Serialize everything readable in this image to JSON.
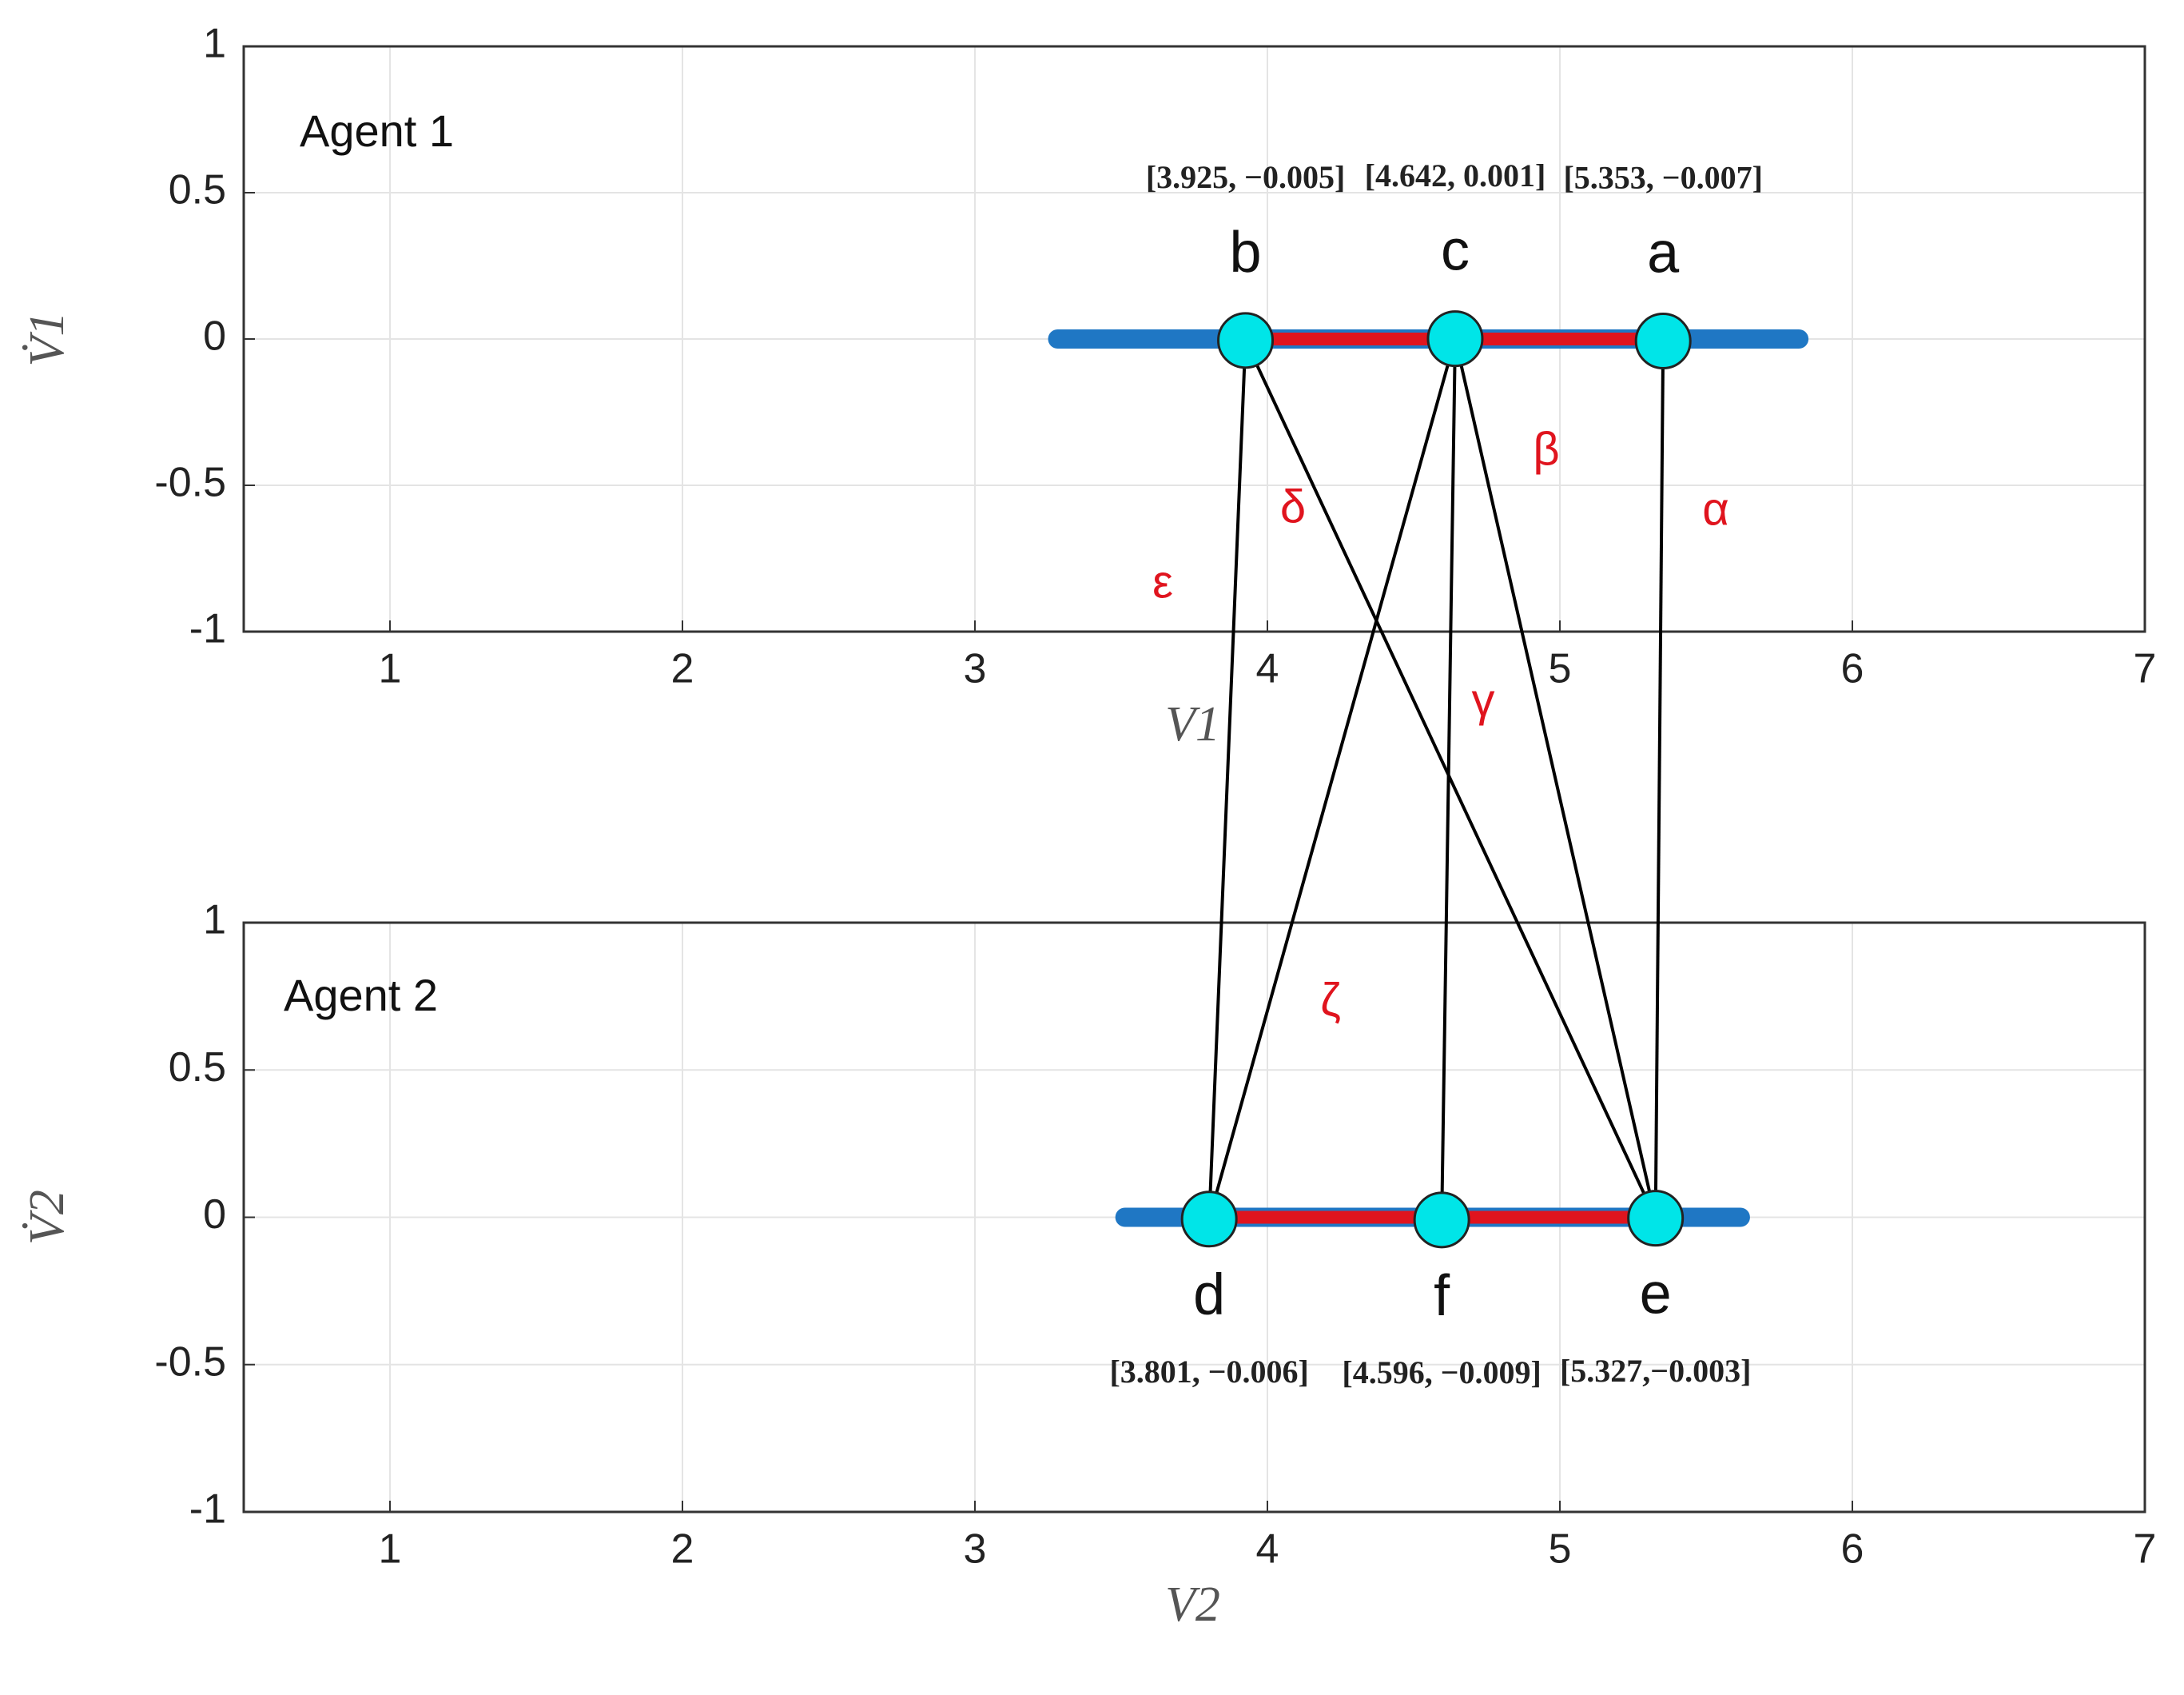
{
  "chart_data": [
    {
      "type": "scatter",
      "annotation": "Agent 1",
      "xlabel": "V1",
      "ylabel": "V̇1",
      "xlim": [
        0.5,
        7
      ],
      "ylim": [
        -1,
        1
      ],
      "xticks": [
        1,
        2,
        3,
        4,
        5,
        6,
        7
      ],
      "yticks": [
        -1,
        -0.5,
        0,
        0.5,
        1
      ],
      "grid": true,
      "cloud_x": [
        3.25,
        5.85
      ],
      "cloud_color": "#1f77c4",
      "link_color": "#e0141e",
      "color": "#00e5e8",
      "point_labels": [
        "b",
        "c",
        "a"
      ],
      "x": [
        3.925,
        4.642,
        5.353
      ],
      "values": [
        -0.005,
        0.001,
        -0.007
      ],
      "value_labels": [
        "[3.925, −0.005]",
        "[4.642, 0.001]",
        "[5.353, −0.007]"
      ],
      "label_side": "top"
    },
    {
      "type": "scatter",
      "annotation": "Agent 2",
      "xlabel": "V2",
      "ylabel": "V̇2",
      "xlim": [
        0.5,
        7
      ],
      "ylim": [
        -1,
        1
      ],
      "xticks": [
        1,
        2,
        3,
        4,
        5,
        6,
        7
      ],
      "yticks": [
        -1,
        -0.5,
        0,
        0.5,
        1
      ],
      "grid": true,
      "cloud_x": [
        3.48,
        5.65
      ],
      "cloud_color": "#1f77c4",
      "link_color": "#e0141e",
      "color": "#00e5e8",
      "point_labels": [
        "d",
        "f",
        "e"
      ],
      "x": [
        3.801,
        4.596,
        5.327
      ],
      "values": [
        -0.006,
        -0.009,
        -0.003
      ],
      "value_labels": [
        "[3.801, −0.006]",
        "[4.596, −0.009]",
        "[5.327,−0.003]"
      ],
      "label_side": "bottom"
    }
  ],
  "links": [
    {
      "from": "b",
      "to": "d",
      "label": "ε"
    },
    {
      "from": "b",
      "to": "e",
      "label": "δ"
    },
    {
      "from": "c",
      "to": "e",
      "label": "β"
    },
    {
      "from": "a",
      "to": "e",
      "label": "α"
    },
    {
      "from": "c",
      "to": "f",
      "label": "γ"
    },
    {
      "from": "c",
      "to": "d",
      "label": "ζ"
    }
  ]
}
